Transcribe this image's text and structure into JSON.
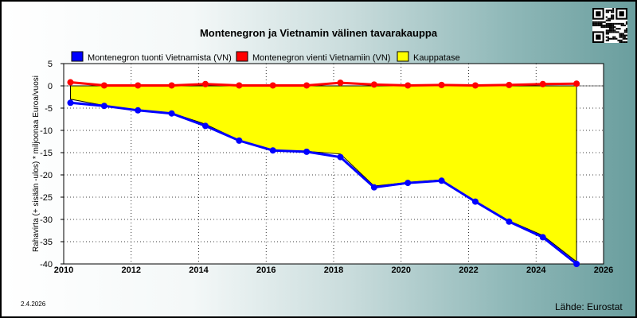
{
  "chart_data": {
    "type": "area",
    "title": "Montenegron ja Vietnamin välinen tavarakauppa",
    "ylabel": "Rahavirta (+ sisään -ulos)  * miljoonaa Euroa/vuosi",
    "xlabel": "",
    "xlim": [
      2010,
      2026
    ],
    "ylim": [
      -40,
      5
    ],
    "xticks": [
      2010,
      2012,
      2014,
      2016,
      2018,
      2020,
      2022,
      2024,
      2026
    ],
    "yticks": [
      5,
      0,
      -5,
      -10,
      -15,
      -20,
      -25,
      -30,
      -35,
      -40
    ],
    "grid": true,
    "legend_position": "top",
    "x": [
      2010.2,
      2011.2,
      2012.2,
      2013.2,
      2014.2,
      2015.2,
      2016.2,
      2017.2,
      2018.2,
      2019.2,
      2020.2,
      2021.2,
      2022.2,
      2023.2,
      2024.2,
      2025.2
    ],
    "series": [
      {
        "name": "Montenegron tuonti Vietnamista (VN)",
        "color": "#0000ff",
        "kind": "line",
        "values": [
          -3.8,
          -4.5,
          -5.5,
          -6.2,
          -9.0,
          -12.3,
          -14.5,
          -14.8,
          -16.0,
          -22.8,
          -21.8,
          -21.3,
          -26.0,
          -30.5,
          -34.0,
          -40.0
        ]
      },
      {
        "name": "Montenegron vienti Vietnamiin (VN)",
        "color": "#ff0000",
        "kind": "line",
        "values": [
          0.8,
          0.1,
          0.1,
          0.1,
          0.4,
          0.1,
          0.1,
          0.1,
          0.7,
          0.3,
          0.1,
          0.2,
          0.1,
          0.2,
          0.4,
          0.5
        ]
      },
      {
        "name": "Kauppatase",
        "color": "#ffff00",
        "kind": "area",
        "values": [
          -3.0,
          -4.4,
          -5.4,
          -6.1,
          -8.6,
          -12.2,
          -14.4,
          -14.7,
          -15.3,
          -22.5,
          -21.7,
          -21.1,
          -25.9,
          -30.3,
          -33.6,
          -39.5
        ]
      }
    ]
  },
  "footer": {
    "date": "2.4.2026",
    "source": "Lähde: Eurostat"
  },
  "qr_icon": "qr-code-icon"
}
